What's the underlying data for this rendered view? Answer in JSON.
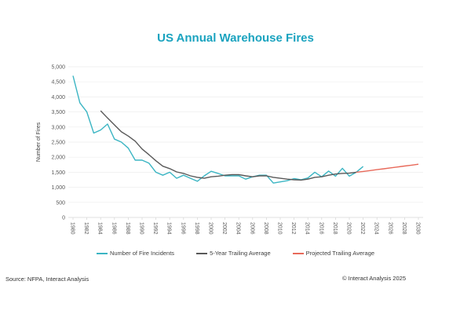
{
  "chart_data": {
    "type": "line",
    "title": "US Annual Warehouse Fires",
    "xlabel": "",
    "ylabel": "Number of Fires",
    "xlim": [
      1980,
      2030
    ],
    "ylim": [
      0,
      5000
    ],
    "yticks": [
      0,
      500,
      1000,
      1500,
      2000,
      2500,
      3000,
      3500,
      4000,
      4500,
      5000
    ],
    "ytick_labels": [
      "0",
      "500",
      "1,000",
      "1,500",
      "2,000",
      "2,500",
      "3,000",
      "3,500",
      "4,000",
      "4,500",
      "5,000"
    ],
    "xticks": [
      1980,
      1982,
      1984,
      1986,
      1988,
      1990,
      1992,
      1994,
      1996,
      1998,
      2000,
      2002,
      2004,
      2006,
      2008,
      2010,
      2012,
      2014,
      2016,
      2018,
      2020,
      2022,
      2024,
      2026,
      2028,
      2030
    ],
    "grid": true,
    "legend_position": "bottom",
    "series": [
      {
        "name": "Number of Fire Incidents",
        "color": "#3bb5c3",
        "x": [
          1980,
          1981,
          1982,
          1983,
          1984,
          1985,
          1986,
          1987,
          1988,
          1989,
          1990,
          1991,
          1992,
          1993,
          1994,
          1995,
          1996,
          1997,
          1998,
          1999,
          2000,
          2001,
          2002,
          2003,
          2004,
          2005,
          2006,
          2007,
          2008,
          2009,
          2010,
          2011,
          2012,
          2013,
          2014,
          2015,
          2016,
          2017,
          2018,
          2019,
          2020,
          2021,
          2022
        ],
        "y": [
          4700,
          3800,
          3500,
          2800,
          2900,
          3100,
          2600,
          2500,
          2300,
          1900,
          1900,
          1800,
          1500,
          1400,
          1500,
          1300,
          1400,
          1300,
          1200,
          1380,
          1530,
          1460,
          1380,
          1380,
          1380,
          1270,
          1350,
          1400,
          1400,
          1140,
          1180,
          1220,
          1290,
          1250,
          1310,
          1500,
          1350,
          1540,
          1370,
          1630,
          1370,
          1500,
          1690
        ]
      },
      {
        "name": "5-Year Trailing Average",
        "color": "#595959",
        "x": [
          1984,
          1985,
          1986,
          1987,
          1988,
          1989,
          1990,
          1991,
          1992,
          1993,
          1994,
          1995,
          1996,
          1997,
          1998,
          1999,
          2000,
          2001,
          2002,
          2003,
          2004,
          2005,
          2006,
          2007,
          2008,
          2009,
          2010,
          2011,
          2012,
          2013,
          2014,
          2015,
          2016,
          2017,
          2018,
          2019,
          2020,
          2021
        ],
        "y": [
          3540,
          3300,
          3070,
          2840,
          2700,
          2530,
          2270,
          2080,
          1880,
          1700,
          1620,
          1510,
          1460,
          1380,
          1330,
          1300,
          1350,
          1370,
          1400,
          1420,
          1420,
          1380,
          1350,
          1380,
          1380,
          1330,
          1300,
          1270,
          1250,
          1240,
          1270,
          1330,
          1350,
          1400,
          1440,
          1460,
          1470,
          1500
        ]
      },
      {
        "name": "Projected Trailing Average",
        "color": "#e8695a",
        "x": [
          2021,
          2022,
          2023,
          2024,
          2025,
          2026,
          2027,
          2028,
          2029,
          2030
        ],
        "y": [
          1500,
          1525,
          1555,
          1585,
          1615,
          1645,
          1675,
          1705,
          1735,
          1765
        ]
      }
    ]
  },
  "footer": {
    "source": "Source: NFPA, Interact Analysis",
    "copyright": "© Interact Analysis 2025"
  }
}
